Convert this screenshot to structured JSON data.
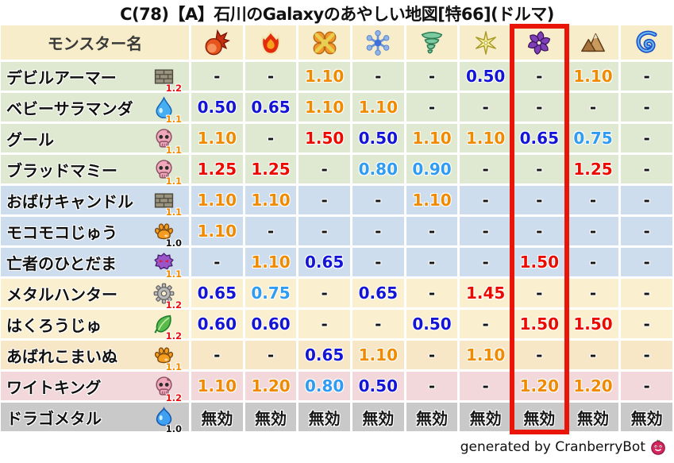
{
  "title": "C(78)【A】石川のGalaxyのあやしい地図[特66](ドルマ)",
  "footer": {
    "credit": "generated by CranberryBot"
  },
  "chart_data": {
    "type": "table",
    "name_header": "モンスター名",
    "columns": [
      {
        "id": "fire",
        "icon": "fireball-icon"
      },
      {
        "id": "blaze",
        "icon": "flame-icon"
      },
      {
        "id": "bang",
        "icon": "bang-icon"
      },
      {
        "id": "ice",
        "icon": "snowflake-icon"
      },
      {
        "id": "wind",
        "icon": "tornado-icon"
      },
      {
        "id": "zap",
        "icon": "spark-icon"
      },
      {
        "id": "dark",
        "icon": "pinwheel-icon"
      },
      {
        "id": "earth",
        "icon": "mountain-icon"
      },
      {
        "id": "water",
        "icon": "wave-icon"
      }
    ],
    "highlighted_column_index": 6,
    "rows": [
      {
        "name": "デビルアーマー",
        "type_icon": "brick-icon",
        "multiplier": "1.2",
        "group": "green",
        "values": [
          "-",
          "-",
          "1.10",
          "-",
          "-",
          "0.50",
          "-",
          "1.10",
          "-"
        ]
      },
      {
        "name": "ベビーサラマンダ",
        "type_icon": "drop-icon",
        "multiplier": "1.1",
        "group": "green",
        "values": [
          "0.50",
          "0.65",
          "1.10",
          "1.10",
          "-",
          "-",
          "-",
          "-",
          "-"
        ]
      },
      {
        "name": "グール",
        "type_icon": "skull-icon",
        "multiplier": "1.1",
        "group": "green",
        "values": [
          "1.10",
          "-",
          "1.50",
          "0.50",
          "1.10",
          "1.10",
          "0.65",
          "0.75",
          "-"
        ]
      },
      {
        "name": "ブラッドマミー",
        "type_icon": "skull-icon",
        "multiplier": "1.1",
        "group": "green",
        "values": [
          "1.25",
          "1.25",
          "-",
          "0.80",
          "0.90",
          "-",
          "-",
          "1.25",
          "-"
        ]
      },
      {
        "name": "おばけキャンドル",
        "type_icon": "brick-icon",
        "multiplier": "1.1",
        "group": "blue",
        "values": [
          "1.10",
          "1.10",
          "-",
          "-",
          "1.10",
          "-",
          "-",
          "-",
          "-"
        ]
      },
      {
        "name": "モコモコじゅう",
        "type_icon": "paw-icon",
        "multiplier": "1.0",
        "group": "blue",
        "values": [
          "1.10",
          "-",
          "-",
          "-",
          "-",
          "-",
          "-",
          "-",
          "-"
        ]
      },
      {
        "name": "亡者のひとだま",
        "type_icon": "ghost-icon",
        "multiplier": "1.1",
        "group": "blue",
        "values": [
          "-",
          "1.10",
          "0.65",
          "-",
          "-",
          "-",
          "1.50",
          "-",
          "-"
        ]
      },
      {
        "name": "メタルハンター",
        "type_icon": "gear-icon",
        "multiplier": "1.2",
        "group": "cream",
        "values": [
          "0.65",
          "0.75",
          "-",
          "0.65",
          "-",
          "1.45",
          "-",
          "-",
          "-"
        ]
      },
      {
        "name": "はくろうじゅ",
        "type_icon": "leaf-icon",
        "multiplier": "1.2",
        "group": "cream",
        "values": [
          "0.60",
          "0.60",
          "-",
          "-",
          "0.50",
          "-",
          "1.50",
          "1.50",
          "-"
        ]
      },
      {
        "name": "あばれこまいぬ",
        "type_icon": "paw-icon",
        "multiplier": "1.1",
        "group": "peach",
        "values": [
          "-",
          "-",
          "0.65",
          "1.10",
          "-",
          "1.10",
          "-",
          "-",
          "-"
        ]
      },
      {
        "name": "ワイトキング",
        "type_icon": "skull-icon",
        "multiplier": "1.2",
        "group": "pink",
        "values": [
          "1.10",
          "1.20",
          "0.80",
          "0.50",
          "-",
          "-",
          "1.20",
          "1.20",
          "-"
        ]
      },
      {
        "name": "ドラゴメタル",
        "type_icon": "slime-icon",
        "multiplier": "1.0",
        "group": "gray",
        "values": [
          "無効",
          "無効",
          "無効",
          "無効",
          "無効",
          "無効",
          "無効",
          "無効",
          "無効"
        ]
      }
    ]
  },
  "colors": {
    "header_bg": "#f8edca",
    "group_green": "#dfe9d2",
    "group_blue": "#cedded",
    "group_cream": "#faefce",
    "group_peach": "#f8e7c6",
    "group_pink": "#f2d8da",
    "group_gray": "#c9c9c9",
    "value_down_strong": "#1414d6",
    "value_down": "#2f9bf2",
    "value_up": "#f08a00",
    "value_up_strong": "#ea0a00",
    "highlight_box": "#ea1509"
  }
}
